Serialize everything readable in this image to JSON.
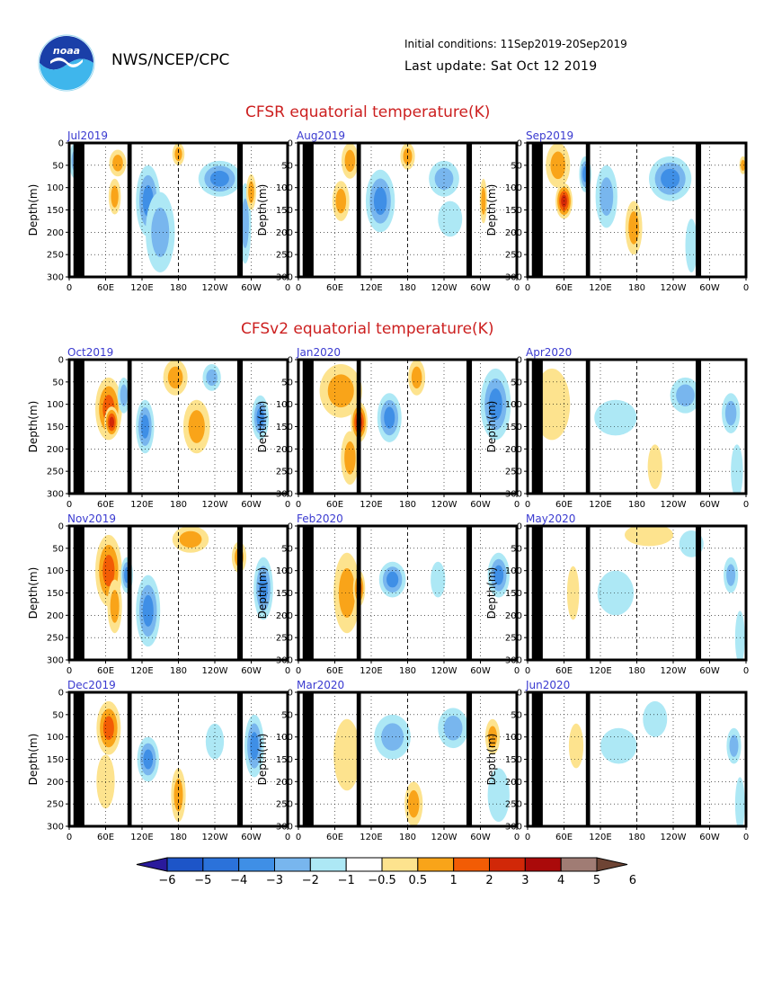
{
  "header": {
    "agency": "NWS/NCEP/CPC",
    "logo_text": "noaa",
    "initial_conditions": "Initial conditions: 11Sep2019-20Sep2019",
    "last_update": "Last update: Sat Oct 12 2019"
  },
  "sections": {
    "cfsr_title": "CFSR equatorial temperature(K)",
    "cfsv2_title": "CFSv2 equatorial temperature(K)"
  },
  "axis": {
    "ylabel": "Depth(m)",
    "y_ticks": [
      "0",
      "50",
      "100",
      "150",
      "200",
      "250",
      "300"
    ],
    "x_ticks": [
      "0",
      "60E",
      "120E",
      "180",
      "120W",
      "60W",
      "0"
    ]
  },
  "colors": {
    "panel_label": "#3a3ad0",
    "section_title": "#cc1f1f",
    "land": "#000000"
  },
  "colorbar": {
    "labels": [
      "−6",
      "−5",
      "−4",
      "−3",
      "−2",
      "−1",
      "−0.5",
      "0.5",
      "1",
      "2",
      "3",
      "4",
      "5",
      "6"
    ],
    "colors": [
      "#2a1a9c",
      "#1d55c8",
      "#2b72da",
      "#3f8fe6",
      "#78b6ee",
      "#ade8f5",
      "#ffffff",
      "#fde38e",
      "#f9a419",
      "#f25c05",
      "#d12808",
      "#aa0a0a",
      "#a07c74",
      "#6e4434"
    ]
  },
  "chart_data": [
    {
      "type": "heatmap",
      "label": "Jul2019",
      "xlabel": "",
      "ylabel": "Depth(m)",
      "ylim": [
        300,
        0
      ],
      "x_range": [
        "0",
        "0"
      ],
      "anomalies": [
        {
          "lon": 10,
          "depth": 40,
          "dlon": 10,
          "ddepth": 40,
          "value": -1.5
        },
        {
          "lon": 80,
          "depth": 45,
          "dlon": 14,
          "ddepth": 30,
          "value": 1.0
        },
        {
          "lon": 75,
          "depth": 120,
          "dlon": 10,
          "ddepth": 40,
          "value": 1.5
        },
        {
          "lon": 130,
          "depth": 130,
          "dlon": 20,
          "ddepth": 80,
          "value": -2.0
        },
        {
          "lon": 150,
          "depth": 200,
          "dlon": 24,
          "ddepth": 90,
          "value": -1.0
        },
        {
          "lon": 180,
          "depth": 25,
          "dlon": 10,
          "ddepth": 25,
          "value": 1.5
        },
        {
          "lon": 248,
          "depth": 80,
          "dlon": 35,
          "ddepth": 40,
          "value": -2.5
        },
        {
          "lon": 290,
          "depth": 180,
          "dlon": 10,
          "ddepth": 90,
          "value": -1.0
        },
        {
          "lon": 300,
          "depth": 110,
          "dlon": 8,
          "ddepth": 40,
          "value": 1.0
        }
      ]
    },
    {
      "type": "heatmap",
      "label": "Aug2019",
      "xlabel": "",
      "ylabel": "Depth(m)",
      "ylim": [
        300,
        0
      ],
      "x_range": [
        "0",
        "0"
      ],
      "anomalies": [
        {
          "lon": 85,
          "depth": 40,
          "dlon": 14,
          "ddepth": 40,
          "value": 1.0
        },
        {
          "lon": 70,
          "depth": 130,
          "dlon": 14,
          "ddepth": 45,
          "value": 1.5
        },
        {
          "lon": 135,
          "depth": 130,
          "dlon": 24,
          "ddepth": 70,
          "value": -2.0
        },
        {
          "lon": 180,
          "depth": 30,
          "dlon": 12,
          "ddepth": 30,
          "value": 1.0
        },
        {
          "lon": 240,
          "depth": 80,
          "dlon": 25,
          "ddepth": 40,
          "value": -1.5
        },
        {
          "lon": 250,
          "depth": 170,
          "dlon": 20,
          "ddepth": 40,
          "value": -0.8
        },
        {
          "lon": 305,
          "depth": 130,
          "dlon": 6,
          "ddepth": 50,
          "value": 1.5
        }
      ]
    },
    {
      "type": "heatmap",
      "label": "Sep2019",
      "xlabel": "",
      "ylabel": "Depth(m)",
      "ylim": [
        300,
        0
      ],
      "x_range": [
        "0",
        "0"
      ],
      "anomalies": [
        {
          "lon": 50,
          "depth": 50,
          "dlon": 20,
          "ddepth": 50,
          "value": 1.5
        },
        {
          "lon": 60,
          "depth": 130,
          "dlon": 14,
          "ddepth": 40,
          "value": 3.0
        },
        {
          "lon": 95,
          "depth": 70,
          "dlon": 10,
          "ddepth": 40,
          "value": -2.0
        },
        {
          "lon": 130,
          "depth": 120,
          "dlon": 18,
          "ddepth": 70,
          "value": -1.5
        },
        {
          "lon": 175,
          "depth": 190,
          "dlon": 14,
          "ddepth": 60,
          "value": 1.5
        },
        {
          "lon": 235,
          "depth": 80,
          "dlon": 35,
          "ddepth": 50,
          "value": -2.0
        },
        {
          "lon": 270,
          "depth": 230,
          "dlon": 10,
          "ddepth": 60,
          "value": -0.8
        },
        {
          "lon": 355,
          "depth": 50,
          "dlon": 6,
          "ddepth": 20,
          "value": 1.0
        }
      ]
    },
    {
      "type": "heatmap",
      "label": "Oct2019",
      "xlabel": "",
      "ylabel": "Depth(m)",
      "ylim": [
        300,
        0
      ],
      "x_range": [
        "0",
        "0"
      ],
      "anomalies": [
        {
          "lon": 65,
          "depth": 110,
          "dlon": 22,
          "ddepth": 70,
          "value": 2.0
        },
        {
          "lon": 70,
          "depth": 140,
          "dlon": 12,
          "ddepth": 35,
          "value": 3.0
        },
        {
          "lon": 90,
          "depth": 80,
          "dlon": 10,
          "ddepth": 40,
          "value": -1.5
        },
        {
          "lon": 125,
          "depth": 150,
          "dlon": 15,
          "ddepth": 60,
          "value": -2.5
        },
        {
          "lon": 175,
          "depth": 40,
          "dlon": 20,
          "ddepth": 40,
          "value": 1.5
        },
        {
          "lon": 210,
          "depth": 150,
          "dlon": 22,
          "ddepth": 60,
          "value": 1.5
        },
        {
          "lon": 235,
          "depth": 40,
          "dlon": 15,
          "ddepth": 30,
          "value": -1.0
        },
        {
          "lon": 315,
          "depth": 130,
          "dlon": 14,
          "ddepth": 50,
          "value": -2.0
        }
      ]
    },
    {
      "type": "heatmap",
      "label": "Jan2020",
      "xlabel": "",
      "ylabel": "Depth(m)",
      "ylim": [
        300,
        0
      ],
      "x_range": [
        "0",
        "0"
      ],
      "anomalies": [
        {
          "lon": 70,
          "depth": 70,
          "dlon": 35,
          "ddepth": 60,
          "value": 1.5
        },
        {
          "lon": 100,
          "depth": 140,
          "dlon": 14,
          "ddepth": 45,
          "value": 3.0
        },
        {
          "lon": 85,
          "depth": 220,
          "dlon": 15,
          "ddepth": 60,
          "value": 1.0
        },
        {
          "lon": 150,
          "depth": 130,
          "dlon": 20,
          "ddepth": 55,
          "value": -2.5
        },
        {
          "lon": 195,
          "depth": 40,
          "dlon": 14,
          "ddepth": 40,
          "value": 1.0
        },
        {
          "lon": 325,
          "depth": 100,
          "dlon": 25,
          "ddepth": 80,
          "value": -2.5
        }
      ]
    },
    {
      "type": "heatmap",
      "label": "Apr2020",
      "xlabel": "",
      "ylabel": "Depth(m)",
      "ylim": [
        300,
        0
      ],
      "x_range": [
        "0",
        "0"
      ],
      "anomalies": [
        {
          "lon": 40,
          "depth": 100,
          "dlon": 30,
          "ddepth": 80,
          "value": 0.8
        },
        {
          "lon": 145,
          "depth": 130,
          "dlon": 35,
          "ddepth": 40,
          "value": -0.8
        },
        {
          "lon": 210,
          "depth": 240,
          "dlon": 12,
          "ddepth": 50,
          "value": 0.8
        },
        {
          "lon": 260,
          "depth": 80,
          "dlon": 25,
          "ddepth": 40,
          "value": -1.0
        },
        {
          "lon": 335,
          "depth": 120,
          "dlon": 15,
          "ddepth": 45,
          "value": -1.5
        },
        {
          "lon": 345,
          "depth": 250,
          "dlon": 10,
          "ddepth": 60,
          "value": -0.8
        }
      ]
    },
    {
      "type": "heatmap",
      "label": "Nov2019",
      "xlabel": "",
      "ylabel": "Depth(m)",
      "ylim": [
        300,
        0
      ],
      "x_range": [
        "0",
        "0"
      ],
      "anomalies": [
        {
          "lon": 65,
          "depth": 100,
          "dlon": 22,
          "ddepth": 80,
          "value": 2.0
        },
        {
          "lon": 75,
          "depth": 180,
          "dlon": 12,
          "ddepth": 60,
          "value": 1.0
        },
        {
          "lon": 95,
          "depth": 110,
          "dlon": 10,
          "ddepth": 40,
          "value": -2.0
        },
        {
          "lon": 130,
          "depth": 190,
          "dlon": 20,
          "ddepth": 80,
          "value": -2.0
        },
        {
          "lon": 200,
          "depth": 30,
          "dlon": 30,
          "ddepth": 30,
          "value": 1.0
        },
        {
          "lon": 280,
          "depth": 70,
          "dlon": 12,
          "ddepth": 35,
          "value": 1.5
        },
        {
          "lon": 320,
          "depth": 140,
          "dlon": 16,
          "ddepth": 70,
          "value": -2.0
        }
      ]
    },
    {
      "type": "heatmap",
      "label": "Feb2020",
      "xlabel": "",
      "ylabel": "Depth(m)",
      "ylim": [
        300,
        0
      ],
      "x_range": [
        "0",
        "0"
      ],
      "anomalies": [
        {
          "lon": 80,
          "depth": 150,
          "dlon": 22,
          "ddepth": 90,
          "value": 1.5
        },
        {
          "lon": 100,
          "depth": 140,
          "dlon": 10,
          "ddepth": 40,
          "value": 2.5
        },
        {
          "lon": 155,
          "depth": 120,
          "dlon": 22,
          "ddepth": 40,
          "value": -2.0
        },
        {
          "lon": 230,
          "depth": 120,
          "dlon": 12,
          "ddepth": 40,
          "value": -0.8
        },
        {
          "lon": 330,
          "depth": 110,
          "dlon": 18,
          "ddepth": 50,
          "value": -2.5
        }
      ]
    },
    {
      "type": "heatmap",
      "label": "May2020",
      "xlabel": "",
      "ylabel": "Depth(m)",
      "ylim": [
        300,
        0
      ],
      "x_range": [
        "0",
        "0"
      ],
      "anomalies": [
        {
          "lon": 75,
          "depth": 150,
          "dlon": 10,
          "ddepth": 60,
          "value": 0.8
        },
        {
          "lon": 200,
          "depth": 20,
          "dlon": 40,
          "ddepth": 25,
          "value": 0.8
        },
        {
          "lon": 145,
          "depth": 150,
          "dlon": 30,
          "ddepth": 50,
          "value": -0.8
        },
        {
          "lon": 270,
          "depth": 40,
          "dlon": 20,
          "ddepth": 30,
          "value": -0.8
        },
        {
          "lon": 335,
          "depth": 110,
          "dlon": 12,
          "ddepth": 40,
          "value": -1.5
        },
        {
          "lon": 350,
          "depth": 250,
          "dlon": 8,
          "ddepth": 60,
          "value": -0.8
        }
      ]
    },
    {
      "type": "heatmap",
      "label": "Dec2019",
      "xlabel": "",
      "ylabel": "Depth(m)",
      "ylim": [
        300,
        0
      ],
      "x_range": [
        "0",
        "0"
      ],
      "anomalies": [
        {
          "lon": 65,
          "depth": 80,
          "dlon": 20,
          "ddepth": 60,
          "value": 2.0
        },
        {
          "lon": 60,
          "depth": 200,
          "dlon": 15,
          "ddepth": 60,
          "value": 0.8
        },
        {
          "lon": 130,
          "depth": 150,
          "dlon": 18,
          "ddepth": 50,
          "value": -2.0
        },
        {
          "lon": 180,
          "depth": 230,
          "dlon": 12,
          "ddepth": 60,
          "value": 1.0
        },
        {
          "lon": 240,
          "depth": 110,
          "dlon": 15,
          "ddepth": 40,
          "value": -0.8
        },
        {
          "lon": 305,
          "depth": 120,
          "dlon": 16,
          "ddepth": 70,
          "value": -2.0
        }
      ]
    },
    {
      "type": "heatmap",
      "label": "Mar2020",
      "xlabel": "",
      "ylabel": "Depth(m)",
      "ylim": [
        300,
        0
      ],
      "x_range": [
        "0",
        "0"
      ],
      "anomalies": [
        {
          "lon": 80,
          "depth": 140,
          "dlon": 22,
          "ddepth": 80,
          "value": 0.8
        },
        {
          "lon": 155,
          "depth": 100,
          "dlon": 30,
          "ddepth": 50,
          "value": -1.0
        },
        {
          "lon": 190,
          "depth": 250,
          "dlon": 15,
          "ddepth": 50,
          "value": 1.0
        },
        {
          "lon": 255,
          "depth": 80,
          "dlon": 25,
          "ddepth": 45,
          "value": -1.5
        },
        {
          "lon": 320,
          "depth": 100,
          "dlon": 12,
          "ddepth": 40,
          "value": 1.0
        },
        {
          "lon": 330,
          "depth": 230,
          "dlon": 18,
          "ddepth": 60,
          "value": -0.8
        }
      ]
    },
    {
      "type": "heatmap",
      "label": "Jun2020",
      "xlabel": "",
      "ylabel": "Depth(m)",
      "ylim": [
        300,
        0
      ],
      "x_range": [
        "0",
        "0"
      ],
      "anomalies": [
        {
          "lon": 80,
          "depth": 120,
          "dlon": 12,
          "ddepth": 50,
          "value": 0.8
        },
        {
          "lon": 150,
          "depth": 120,
          "dlon": 30,
          "ddepth": 40,
          "value": -0.8
        },
        {
          "lon": 210,
          "depth": 60,
          "dlon": 20,
          "ddepth": 40,
          "value": -0.8
        },
        {
          "lon": 340,
          "depth": 120,
          "dlon": 12,
          "ddepth": 40,
          "value": -1.5
        },
        {
          "lon": 350,
          "depth": 250,
          "dlon": 8,
          "ddepth": 60,
          "value": -0.8
        }
      ]
    }
  ]
}
